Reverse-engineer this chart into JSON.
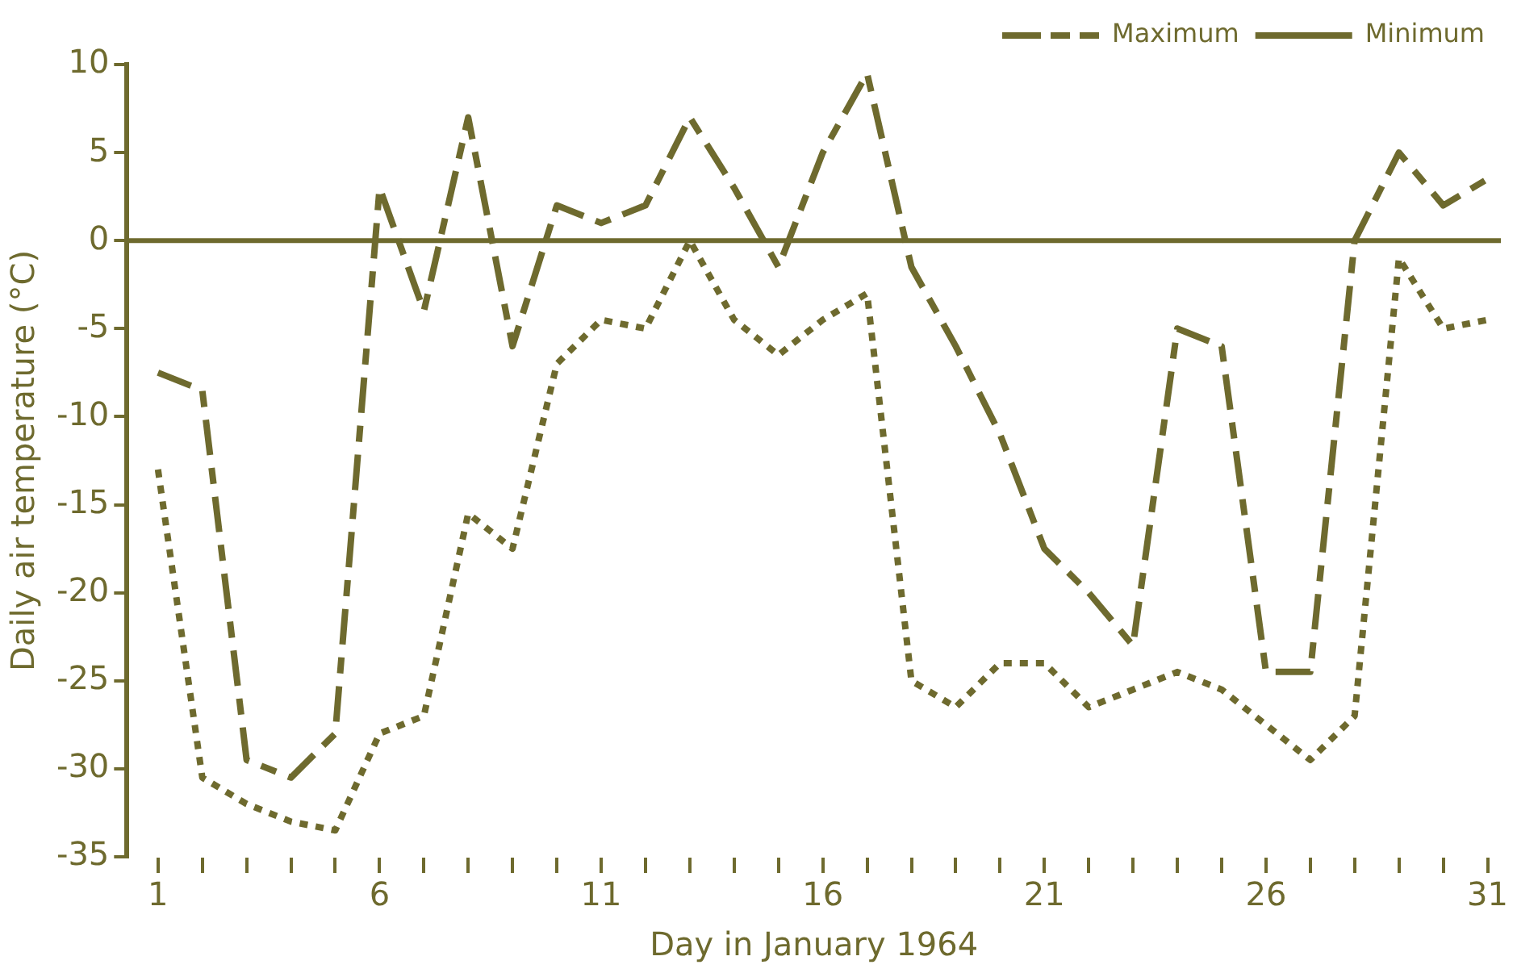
{
  "chart_data": {
    "type": "line",
    "xlabel": "Day in January 1964",
    "ylabel": "Daily air temperature (°C)",
    "x": [
      1,
      2,
      3,
      4,
      5,
      6,
      7,
      8,
      9,
      10,
      11,
      12,
      13,
      14,
      15,
      16,
      17,
      18,
      19,
      20,
      21,
      22,
      23,
      24,
      25,
      26,
      27,
      28,
      29,
      30,
      31
    ],
    "series": [
      {
        "name": "Maximum",
        "color": "#6e6a2e",
        "line_style": "dashed",
        "values": [
          -7.5,
          -8.5,
          -29.5,
          -30.5,
          -28,
          3,
          -4,
          7,
          -6,
          2,
          1,
          2,
          7,
          3,
          -1.5,
          5,
          9.5,
          -1.5,
          -6,
          -11,
          -17.5,
          -20,
          -23,
          -5,
          -6,
          -24.5,
          -24.5,
          0,
          5,
          2,
          3.5
        ]
      },
      {
        "name": "Minimum",
        "color": "#6e6a2e",
        "line_style": "dotted",
        "values": [
          -13,
          -30.5,
          -32,
          -33,
          -33.5,
          -28,
          -27,
          -15.5,
          -17.5,
          -7,
          -4.5,
          -5,
          0,
          -4.5,
          -6.5,
          -4.5,
          -3,
          -25,
          -26.5,
          -24,
          -24,
          -26.5,
          -25.5,
          -24.5,
          -25.5,
          -27.5,
          -29.5,
          -27,
          -1,
          -5,
          -4.5
        ]
      }
    ],
    "xlim": [
      0.3,
      31.3
    ],
    "xticks": [
      1,
      {
        "value": 2,
        "label": null
      },
      {
        "value": 3,
        "label": null
      },
      {
        "value": 4,
        "label": null
      },
      {
        "value": 5,
        "label": null
      },
      6,
      {
        "value": 7,
        "label": null
      },
      {
        "value": 8,
        "label": null
      },
      {
        "value": 9,
        "label": null
      },
      {
        "value": 10,
        "label": null
      },
      11,
      {
        "value": 12,
        "label": null
      },
      {
        "value": 13,
        "label": null
      },
      {
        "value": 14,
        "label": null
      },
      {
        "value": 15,
        "label": null
      },
      16,
      {
        "value": 17,
        "label": null
      },
      {
        "value": 18,
        "label": null
      },
      {
        "value": 19,
        "label": null
      },
      {
        "value": 20,
        "label": null
      },
      21,
      {
        "value": 22,
        "label": null
      },
      {
        "value": 23,
        "label": null
      },
      {
        "value": 24,
        "label": null
      },
      {
        "value": 25,
        "label": null
      },
      26,
      {
        "value": 27,
        "label": null
      },
      {
        "value": 28,
        "label": null
      },
      {
        "value": 29,
        "label": null
      },
      {
        "value": 30,
        "label": null
      },
      31
    ],
    "ylim": [
      -35,
      10
    ],
    "yticks": [
      -35,
      -30,
      -25,
      -20,
      -15,
      -10,
      -5,
      0,
      5,
      10
    ],
    "ref_lines": [
      {
        "axis": "y",
        "value": 0,
        "color": "#6e6a2e",
        "line_style": "solid"
      }
    ],
    "grid": false,
    "legend": "top right",
    "marker": "none"
  }
}
